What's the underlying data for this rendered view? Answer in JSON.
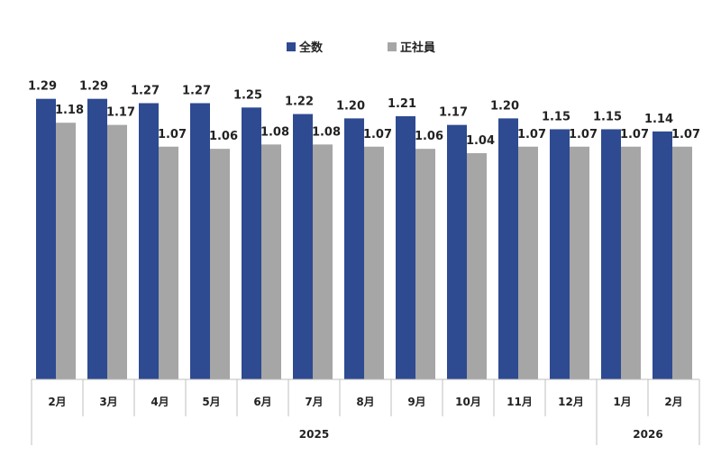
{
  "chart_data": {
    "type": "bar",
    "categories": [
      "2月",
      "3月",
      "4月",
      "5月",
      "6月",
      "7月",
      "8月",
      "9月",
      "10月",
      "11月",
      "12月",
      "1月",
      "2月"
    ],
    "year_groups": [
      {
        "label": "2025",
        "count": 11
      },
      {
        "label": "2026",
        "count": 2
      }
    ],
    "series": [
      {
        "name": "全数",
        "color": "#2E4A91",
        "values": [
          1.29,
          1.29,
          1.27,
          1.27,
          1.25,
          1.22,
          1.2,
          1.21,
          1.17,
          1.2,
          1.15,
          1.15,
          1.14
        ]
      },
      {
        "name": "正社員",
        "color": "#A6A6A6",
        "values": [
          1.18,
          1.17,
          1.07,
          1.06,
          1.08,
          1.08,
          1.07,
          1.06,
          1.04,
          1.07,
          1.07,
          1.07,
          1.07
        ]
      }
    ],
    "ylim": [
      0,
      1.33
    ],
    "legend": "top-center",
    "grid": false,
    "data_labels": true
  }
}
